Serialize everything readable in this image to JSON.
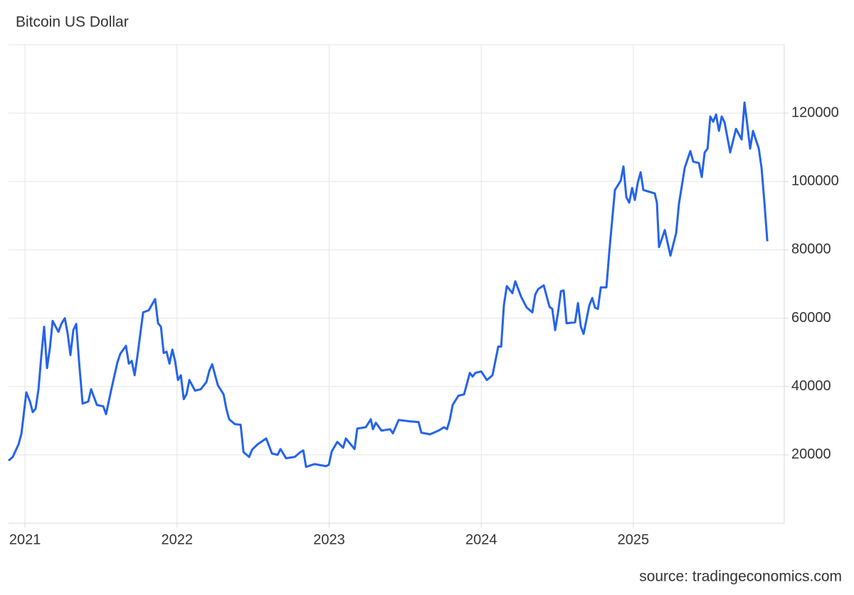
{
  "chart_data": {
    "type": "line",
    "title": "Bitcoin US Dollar",
    "source": "source: tradingeconomics.com",
    "xlim": [
      2020.892,
      2025.983
    ],
    "xticks": [
      2021,
      2022,
      2023,
      2024,
      2025
    ],
    "ylim": [
      0,
      140000
    ],
    "yticks": [
      20000,
      40000,
      60000,
      80000,
      100000,
      120000
    ],
    "grid": true,
    "series": [
      {
        "name": "Bitcoin",
        "color": "#2563eb",
        "x": [
          2020.892,
          2020.92,
          2020.958,
          2020.977,
          2021.009,
          2021.033,
          2021.051,
          2021.07,
          2021.089,
          2021.108,
          2021.126,
          2021.145,
          2021.164,
          2021.182,
          2021.22,
          2021.239,
          2021.262,
          2021.281,
          2021.299,
          2021.318,
          2021.337,
          2021.356,
          2021.379,
          2021.416,
          2021.435,
          2021.473,
          2021.515,
          2021.533,
          2021.571,
          2021.608,
          2021.627,
          2021.664,
          2021.683,
          2021.702,
          2021.721,
          2021.739,
          2021.777,
          2021.814,
          2021.856,
          2021.875,
          2021.894,
          2021.912,
          2021.931,
          2021.95,
          2021.969,
          2021.987,
          2022.006,
          2022.025,
          2022.044,
          2022.062,
          2022.081,
          2022.118,
          2022.156,
          2022.193,
          2022.212,
          2022.231,
          2022.268,
          2022.306,
          2022.324,
          2022.343,
          2022.38,
          2022.418,
          2022.437,
          2022.474,
          2022.493,
          2022.53,
          2022.586,
          2022.624,
          2022.661,
          2022.68,
          2022.717,
          2022.774,
          2022.811,
          2022.83,
          2022.848,
          2022.905,
          2022.979,
          2022.998,
          2023.017,
          2023.054,
          2023.092,
          2023.11,
          2023.167,
          2023.185,
          2023.241,
          2023.274,
          2023.288,
          2023.307,
          2023.344,
          2023.401,
          2023.419,
          2023.457,
          2023.532,
          2023.588,
          2023.606,
          2023.663,
          2023.719,
          2023.756,
          2023.775,
          2023.794,
          2023.812,
          2023.85,
          2023.887,
          2023.906,
          2023.925,
          2023.943,
          2023.962,
          2024.0,
          2024.037,
          2024.074,
          2024.093,
          2024.112,
          2024.131,
          2024.149,
          2024.168,
          2024.205,
          2024.224,
          2024.262,
          2024.299,
          2024.336,
          2024.355,
          2024.374,
          2024.411,
          2024.449,
          2024.467,
          2024.486,
          2024.505,
          2024.524,
          2024.542,
          2024.561,
          2024.617,
          2024.636,
          2024.655,
          2024.673,
          2024.711,
          2024.73,
          2024.748,
          2024.767,
          2024.786,
          2024.823,
          2024.842,
          2024.861,
          2024.879,
          2024.917,
          2024.935,
          2024.954,
          2024.973,
          2024.992,
          2025.01,
          2025.029,
          2025.048,
          2025.066,
          2025.141,
          2025.155,
          2025.169,
          2025.207,
          2025.221,
          2025.244,
          2025.282,
          2025.3,
          2025.338,
          2025.375,
          2025.394,
          2025.431,
          2025.45,
          2025.469,
          2025.488,
          2025.506,
          2025.525,
          2025.544,
          2025.563,
          2025.581,
          2025.6,
          2025.637,
          2025.675,
          2025.712,
          2025.731,
          2025.75,
          2025.768,
          2025.787,
          2025.825,
          2025.843,
          2025.862,
          2025.881
        ],
        "values": [
          18300,
          19400,
          23100,
          26300,
          38300,
          35600,
          32500,
          33500,
          39200,
          49200,
          57500,
          45400,
          51300,
          59200,
          56000,
          58300,
          60000,
          55400,
          49200,
          56500,
          58300,
          47100,
          35000,
          35600,
          39200,
          34600,
          34200,
          31900,
          39800,
          47100,
          49600,
          51900,
          46700,
          47500,
          43300,
          48800,
          61700,
          62300,
          65600,
          58500,
          57500,
          49800,
          50200,
          46700,
          50800,
          47500,
          41900,
          43300,
          36300,
          37700,
          41900,
          38800,
          39200,
          41300,
          44600,
          46500,
          40400,
          37700,
          33500,
          30400,
          29000,
          28800,
          20800,
          19400,
          21500,
          23100,
          24800,
          20400,
          20000,
          21700,
          19000,
          19400,
          20800,
          21300,
          16500,
          17300,
          16700,
          17100,
          21000,
          23800,
          22100,
          24800,
          21700,
          27700,
          28100,
          30400,
          27500,
          29400,
          27100,
          27500,
          26300,
          30200,
          29800,
          29600,
          26500,
          26000,
          27100,
          28100,
          27500,
          30400,
          34600,
          37300,
          37700,
          40800,
          44000,
          42900,
          44000,
          44400,
          41900,
          43300,
          47500,
          51700,
          51700,
          63800,
          69400,
          67300,
          70800,
          66300,
          63100,
          61700,
          66900,
          68500,
          69600,
          63300,
          62700,
          56500,
          61700,
          67900,
          68100,
          58500,
          58800,
          64400,
          57500,
          55400,
          63800,
          65900,
          63100,
          62700,
          69000,
          69000,
          79400,
          88800,
          97500,
          100200,
          104400,
          95400,
          93800,
          98100,
          94600,
          99600,
          102700,
          97500,
          96500,
          93800,
          80800,
          85800,
          82900,
          78300,
          85000,
          93500,
          104000,
          108900,
          105800,
          105400,
          101300,
          108500,
          109600,
          119000,
          117500,
          119600,
          114800,
          119000,
          117300,
          108500,
          115400,
          112300,
          123100,
          116300,
          109600,
          114800,
          109600,
          104000,
          93800,
          82500
        ]
      }
    ]
  }
}
